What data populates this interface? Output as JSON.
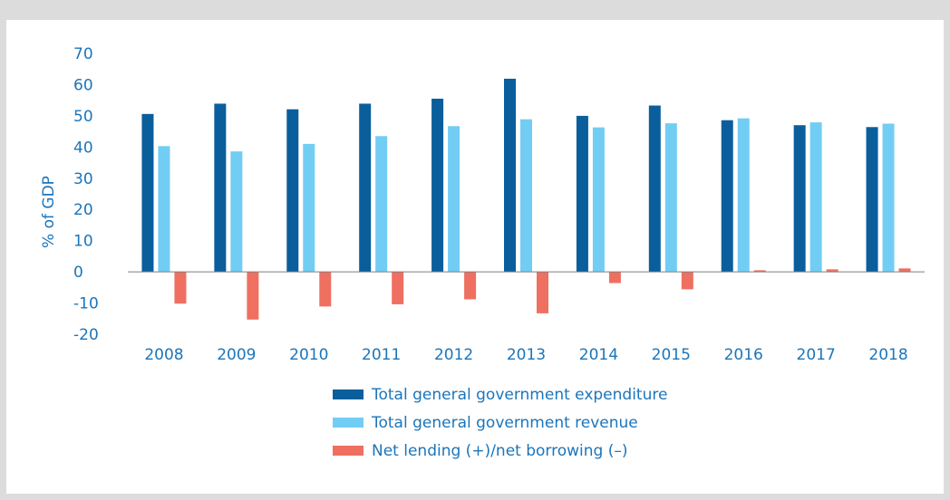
{
  "chart_data": {
    "type": "bar",
    "title": "",
    "xlabel": "",
    "ylabel": "% of GDP",
    "ylim": [
      -20,
      70
    ],
    "yticks": [
      70,
      60,
      50,
      40,
      30,
      20,
      10,
      0,
      -10,
      -20
    ],
    "categories": [
      "2008",
      "2009",
      "2010",
      "2011",
      "2012",
      "2013",
      "2014",
      "2015",
      "2016",
      "2017",
      "2018"
    ],
    "series": [
      {
        "name": "Total general government expenditure",
        "color": "#0a5e9c",
        "values": [
          50.6,
          53.9,
          52.1,
          53.9,
          55.5,
          61.9,
          50.0,
          53.3,
          48.6,
          47.0,
          46.4
        ]
      },
      {
        "name": "Total general government revenue",
        "color": "#72cdf4",
        "values": [
          40.3,
          38.6,
          41.0,
          43.5,
          46.7,
          48.9,
          46.3,
          47.6,
          49.2,
          47.9,
          47.5
        ]
      },
      {
        "name": "Net lending (+)/net borrowing (–)",
        "color": "#ef6f61",
        "values": [
          -10.2,
          -15.3,
          -11.1,
          -10.4,
          -8.8,
          -13.3,
          -3.6,
          -5.6,
          0.5,
          0.8,
          1.1
        ]
      }
    ],
    "legend_position": "bottom",
    "grid": false
  }
}
